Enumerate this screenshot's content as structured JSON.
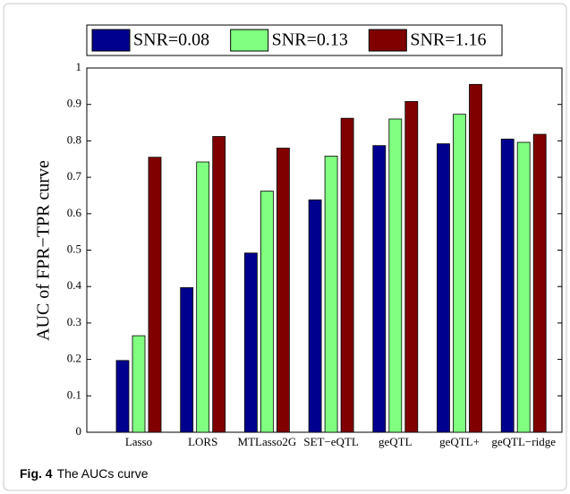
{
  "chart_data": {
    "type": "bar",
    "ylabel": "AUC of FPR−TPR curve",
    "categories": [
      "Lasso",
      "LORS",
      "MTLasso2G",
      "SET−eQTL",
      "geQTL",
      "geQTL+",
      "geQTL−ridge"
    ],
    "series": [
      {
        "name": "SNR=0.08",
        "color": "#00008f",
        "values": [
          0.197,
          0.397,
          0.492,
          0.638,
          0.787,
          0.792,
          0.805
        ]
      },
      {
        "name": "SNR=0.13",
        "color": "#80ff80",
        "values": [
          0.265,
          0.742,
          0.662,
          0.758,
          0.86,
          0.873,
          0.796
        ]
      },
      {
        "name": "SNR=1.16",
        "color": "#800000",
        "values": [
          0.755,
          0.812,
          0.78,
          0.862,
          0.908,
          0.955,
          0.818
        ]
      }
    ],
    "ylim": [
      0,
      1
    ],
    "yticks": [
      0,
      0.1,
      0.2,
      0.3,
      0.4,
      0.5,
      0.6,
      0.7,
      0.8,
      0.9,
      1
    ],
    "legend": "top",
    "caption_label": "Fig. 4",
    "caption": "The AUCs curve"
  }
}
